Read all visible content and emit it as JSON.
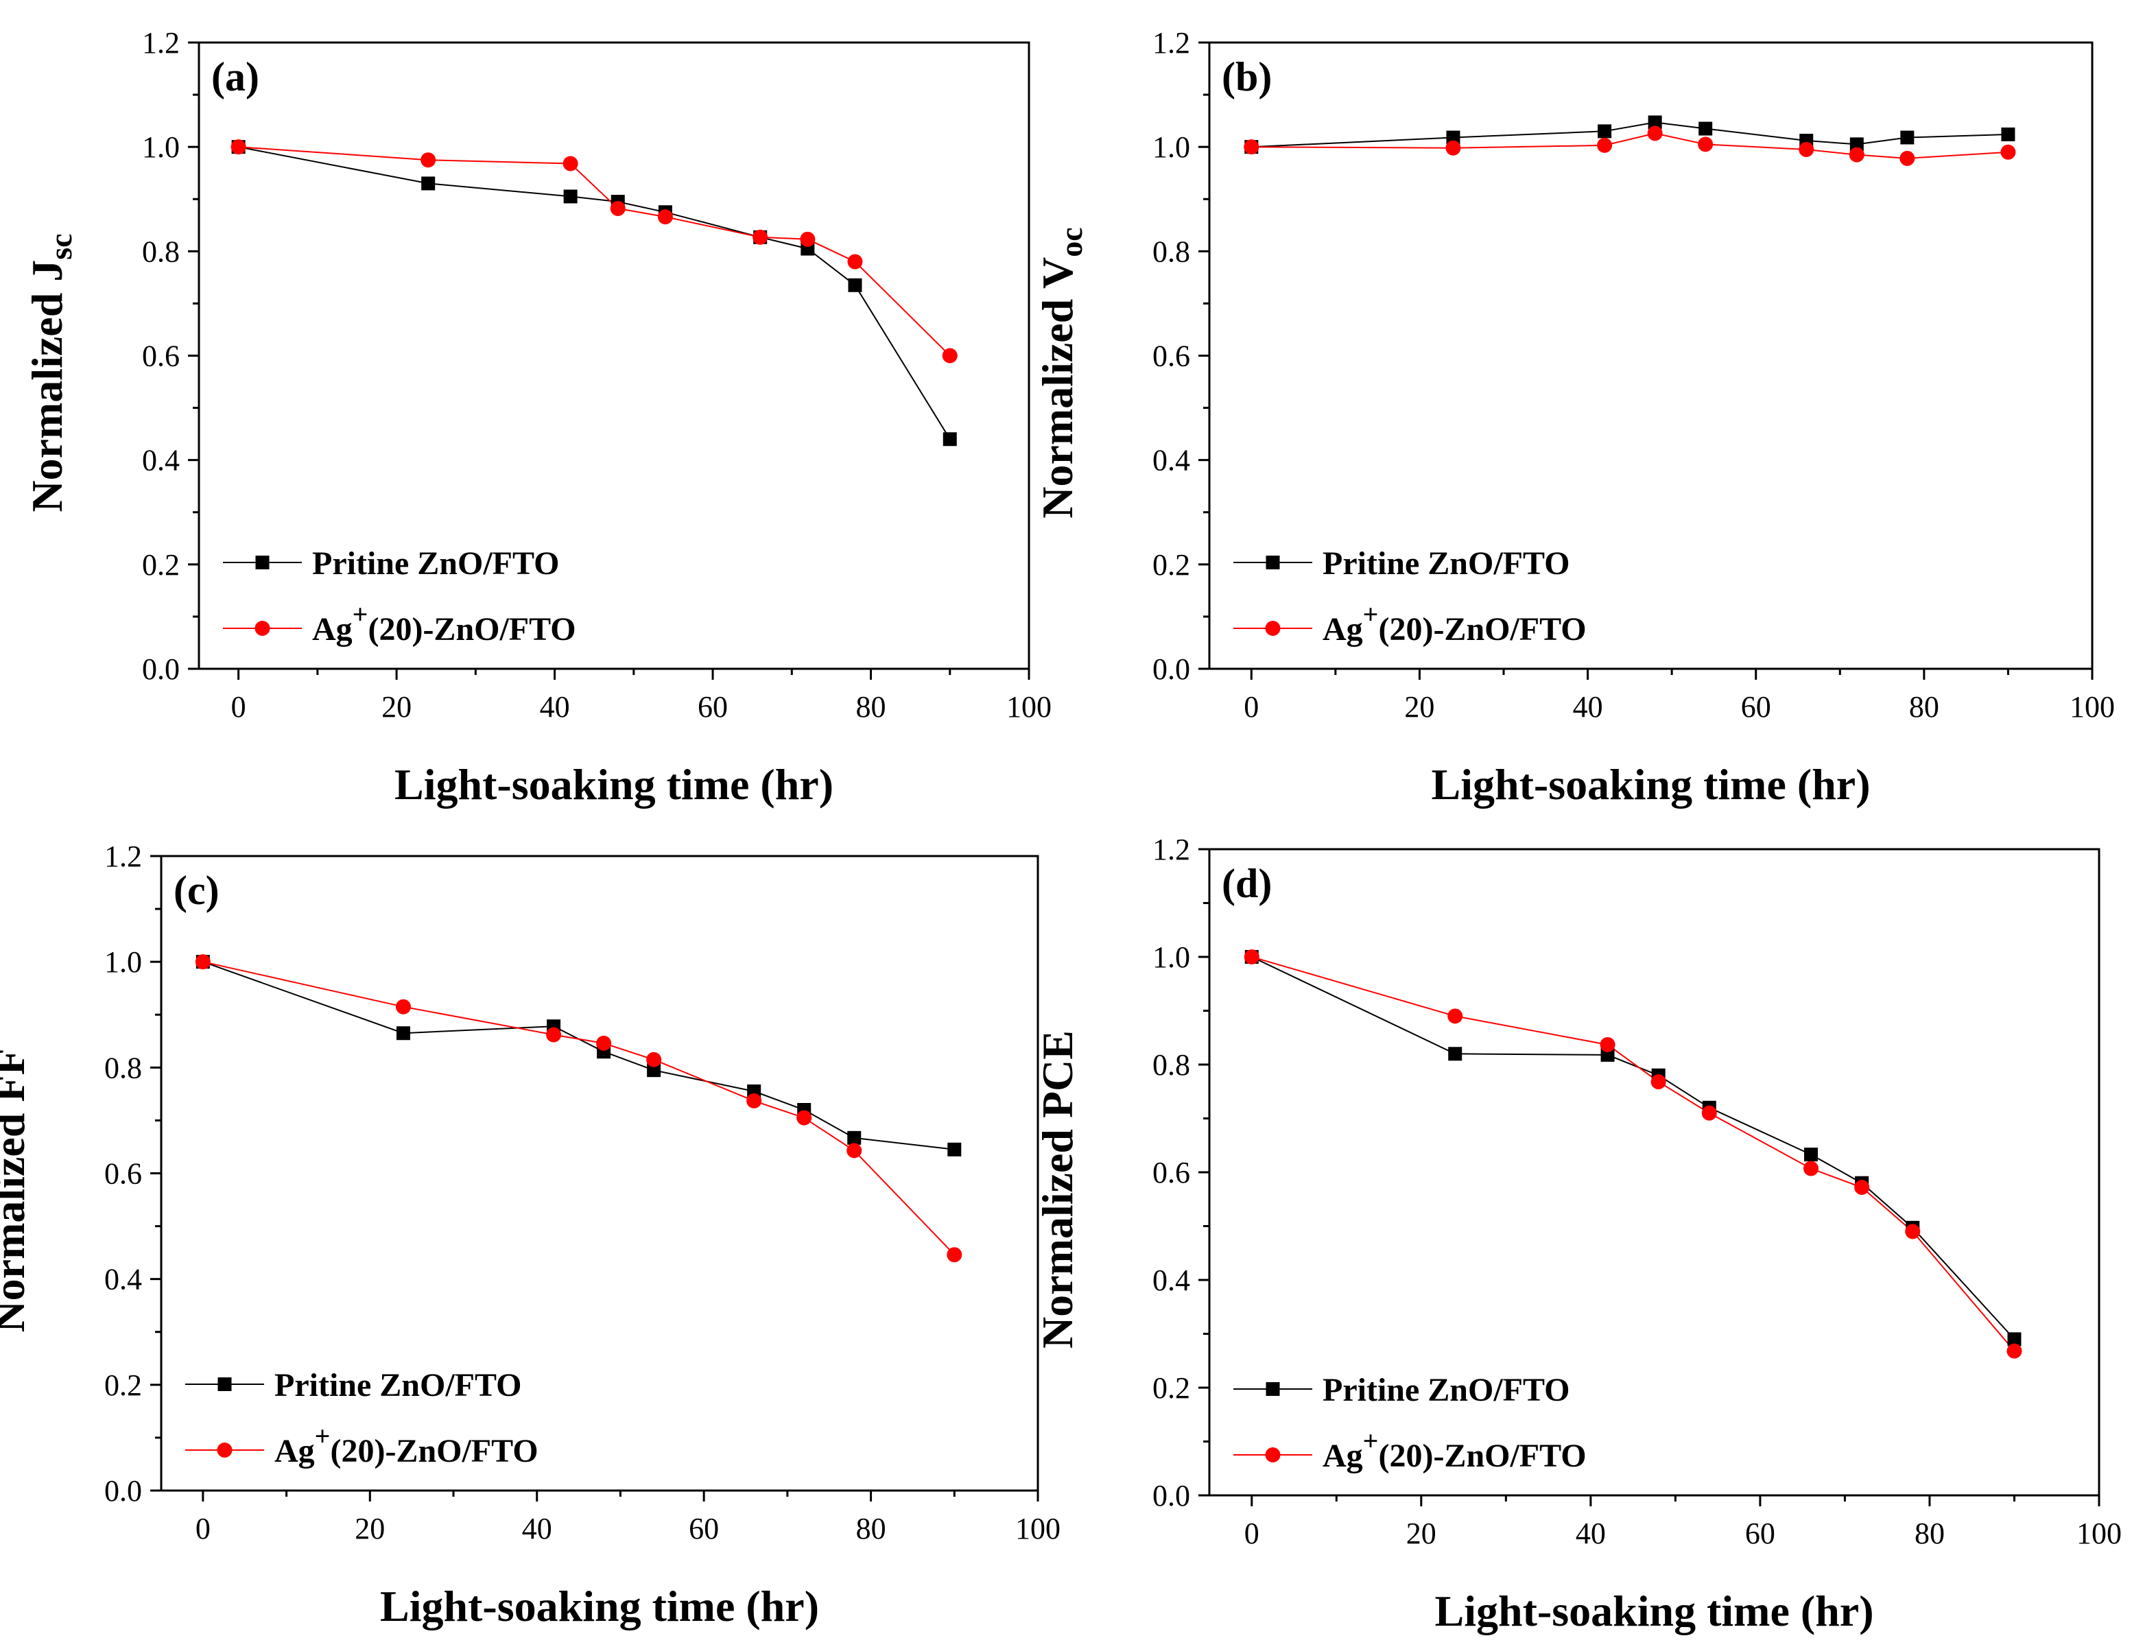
{
  "chart_data": [
    {
      "type": "line",
      "panel_label": "(a)",
      "title": "",
      "xlabel": "Light-soaking time (hr)",
      "ylabel": "Normalized J",
      "ylabel_sub": "sc",
      "xlim": [
        -5,
        100
      ],
      "ylim": [
        0.0,
        1.2
      ],
      "x_ticks": [
        "0",
        "20",
        "40",
        "60",
        "80",
        "100"
      ],
      "y_ticks": [
        "0.0",
        "0.2",
        "0.4",
        "0.6",
        "0.8",
        "1.0",
        "1.2"
      ],
      "x": [
        0,
        24,
        42,
        48,
        54,
        66,
        72,
        78,
        90
      ],
      "legend_position": "bottom-left",
      "series": [
        {
          "name": "Pritine ZnO/FTO",
          "name_sup": "",
          "name_rest": "",
          "marker": "square",
          "color": "#000000",
          "values": [
            1.0,
            0.93,
            0.905,
            0.895,
            0.875,
            0.827,
            0.805,
            0.735,
            0.44
          ]
        },
        {
          "name": "Ag",
          "name_sup": "+",
          "name_rest": "(20)-ZnO/FTO",
          "marker": "circle",
          "color": "#ff0000",
          "values": [
            1.0,
            0.975,
            0.968,
            0.882,
            0.866,
            0.827,
            0.823,
            0.78,
            0.6
          ]
        }
      ]
    },
    {
      "type": "line",
      "panel_label": "(b)",
      "title": "",
      "xlabel": "Light-soaking time (hr)",
      "ylabel": "Normalized V",
      "ylabel_sub": "oc",
      "xlim": [
        -5,
        100
      ],
      "ylim": [
        0.0,
        1.2
      ],
      "x_ticks": [
        "0",
        "20",
        "40",
        "60",
        "80",
        "100"
      ],
      "y_ticks": [
        "0.0",
        "0.2",
        "0.4",
        "0.6",
        "0.8",
        "1.0",
        "1.2"
      ],
      "x": [
        0,
        24,
        42,
        48,
        54,
        66,
        72,
        78,
        90
      ],
      "legend_position": "bottom-left",
      "series": [
        {
          "name": "Pritine ZnO/FTO",
          "name_sup": "",
          "name_rest": "",
          "marker": "square",
          "color": "#000000",
          "values": [
            1.0,
            1.018,
            1.03,
            1.047,
            1.035,
            1.012,
            1.005,
            1.018,
            1.024
          ]
        },
        {
          "name": "Ag",
          "name_sup": "+",
          "name_rest": "(20)-ZnO/FTO",
          "marker": "circle",
          "color": "#ff0000",
          "values": [
            1.0,
            0.998,
            1.003,
            1.026,
            1.005,
            0.995,
            0.985,
            0.978,
            0.99
          ]
        }
      ]
    },
    {
      "type": "line",
      "panel_label": "(c)",
      "title": "",
      "xlabel": "Light-soaking time (hr)",
      "ylabel": "Normalized FF",
      "ylabel_sub": "",
      "xlim": [
        -5,
        100
      ],
      "ylim": [
        0.0,
        1.2
      ],
      "x_ticks": [
        "0",
        "20",
        "40",
        "60",
        "80",
        "100"
      ],
      "y_ticks": [
        "0.0",
        "0.2",
        "0.4",
        "0.6",
        "0.8",
        "1.0",
        "1.2"
      ],
      "x": [
        0,
        24,
        42,
        48,
        54,
        66,
        72,
        78,
        90
      ],
      "legend_position": "bottom-left",
      "series": [
        {
          "name": "Pritine ZnO/FTO",
          "name_sup": "",
          "name_rest": "",
          "marker": "square",
          "color": "#000000",
          "values": [
            1.0,
            0.865,
            0.878,
            0.83,
            0.795,
            0.755,
            0.72,
            0.667,
            0.645
          ]
        },
        {
          "name": "Ag",
          "name_sup": "+",
          "name_rest": "(20)-ZnO/FTO",
          "marker": "circle",
          "color": "#ff0000",
          "values": [
            1.0,
            0.915,
            0.862,
            0.846,
            0.815,
            0.737,
            0.705,
            0.643,
            0.446
          ]
        }
      ]
    },
    {
      "type": "line",
      "panel_label": "(d)",
      "title": "",
      "xlabel": "Light-soaking time (hr)",
      "ylabel": "Normalized PCE",
      "ylabel_sub": "",
      "xlim": [
        -5,
        100
      ],
      "ylim": [
        0.0,
        1.2
      ],
      "x_ticks": [
        "0",
        "20",
        "40",
        "60",
        "80",
        "100"
      ],
      "y_ticks": [
        "0.0",
        "0.2",
        "0.4",
        "0.6",
        "0.8",
        "1.0",
        "1.2"
      ],
      "x": [
        0,
        24,
        42,
        48,
        54,
        66,
        72,
        78,
        90
      ],
      "legend_position": "bottom-left",
      "series": [
        {
          "name": "Pritine ZnO/FTO",
          "name_sup": "",
          "name_rest": "",
          "marker": "square",
          "color": "#000000",
          "values": [
            1.0,
            0.82,
            0.818,
            0.78,
            0.72,
            0.633,
            0.58,
            0.497,
            0.29
          ]
        },
        {
          "name": "Ag",
          "name_sup": "+",
          "name_rest": "(20)-ZnO/FTO",
          "marker": "circle",
          "color": "#ff0000",
          "values": [
            1.0,
            0.89,
            0.837,
            0.768,
            0.71,
            0.607,
            0.572,
            0.49,
            0.268
          ]
        }
      ]
    }
  ]
}
